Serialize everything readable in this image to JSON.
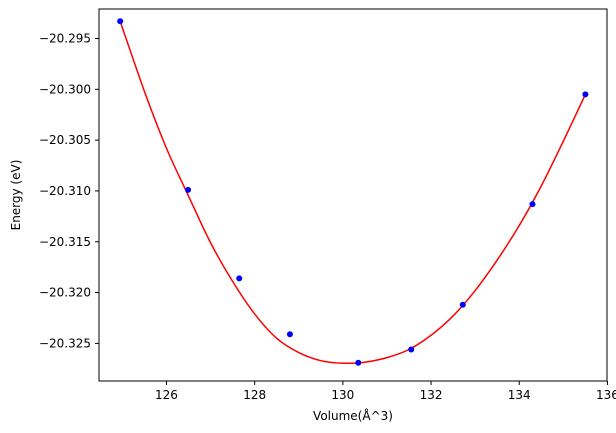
{
  "chart_data": {
    "type": "scatter",
    "title": "",
    "xlabel": "Volume(Å^3)",
    "ylabel": "Energy (eV)",
    "xlim": [
      124.47,
      135.99
    ],
    "ylim": [
      -20.3287,
      -20.2921
    ],
    "xticks": [
      126,
      128,
      130,
      132,
      134,
      136
    ],
    "yticks": [
      -20.325,
      -20.32,
      -20.315,
      -20.31,
      -20.305,
      -20.3,
      -20.295
    ],
    "ytick_labels": [
      "−20.325",
      "−20.320",
      "−20.315",
      "−20.310",
      "−20.305",
      "−20.300",
      "−20.295"
    ],
    "grid": false,
    "series": [
      {
        "kind": "points",
        "color": "#0000ff",
        "x": [
          124.95,
          126.49,
          127.65,
          128.8,
          130.35,
          131.55,
          132.72,
          134.3,
          135.5
        ],
        "y": [
          -20.2933,
          -20.3099,
          -20.3186,
          -20.3241,
          -20.3269,
          -20.3256,
          -20.3212,
          -20.3113,
          -20.3005
        ]
      },
      {
        "kind": "fit-curve",
        "color": "#ff0000",
        "x": [
          124.95,
          125.5,
          126.0,
          126.5,
          127.0,
          127.5,
          128.0,
          128.5,
          129.0,
          129.5,
          130.0,
          130.5,
          131.0,
          131.5,
          132.0,
          132.5,
          133.0,
          133.5,
          134.0,
          134.5,
          135.0,
          135.5
        ],
        "y": [
          -20.2933,
          -20.3002,
          -20.3058,
          -20.3105,
          -20.3151,
          -20.3189,
          -20.3221,
          -20.3245,
          -20.3259,
          -20.3267,
          -20.32695,
          -20.32685,
          -20.3264,
          -20.3256,
          -20.3242,
          -20.3223,
          -20.3198,
          -20.3168,
          -20.3134,
          -20.3095,
          -20.3051,
          -20.3005
        ]
      }
    ]
  }
}
